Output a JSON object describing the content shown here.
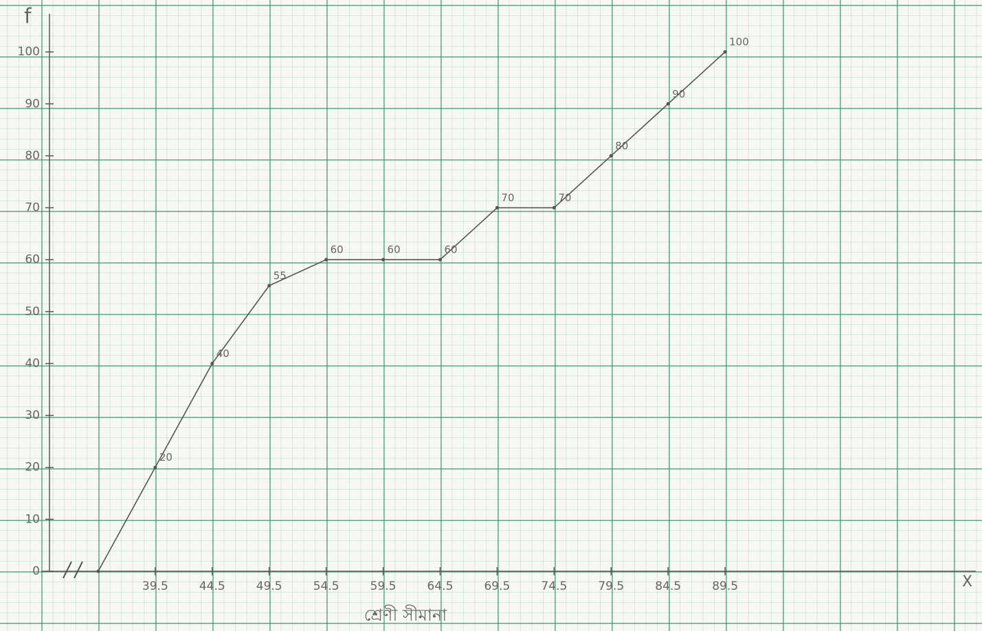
{
  "chart_data": {
    "type": "line",
    "y_label": "f",
    "x_label": "শ্রেণী সীমানা",
    "x_end_label": "X",
    "x": [
      34.5,
      39.5,
      44.5,
      49.5,
      54.5,
      59.5,
      64.5,
      69.5,
      74.5,
      79.5,
      84.5,
      89.5
    ],
    "series": [
      {
        "color": "#555555",
        "values": [
          0,
          20,
          40,
          55,
          60,
          60,
          60,
          70,
          70,
          80,
          90,
          100
        ]
      }
    ],
    "xlim": [
      29.5,
      111.5
    ],
    "xticks": [
      39.5,
      44.5,
      49.5,
      54.5,
      59.5,
      64.5,
      69.5,
      74.5,
      79.5,
      84.5,
      89.5
    ],
    "ylim": [
      0,
      110
    ],
    "yticks": [
      0,
      10,
      20,
      30,
      40,
      50,
      60,
      70,
      80,
      90,
      100
    ],
    "grid": true
  }
}
